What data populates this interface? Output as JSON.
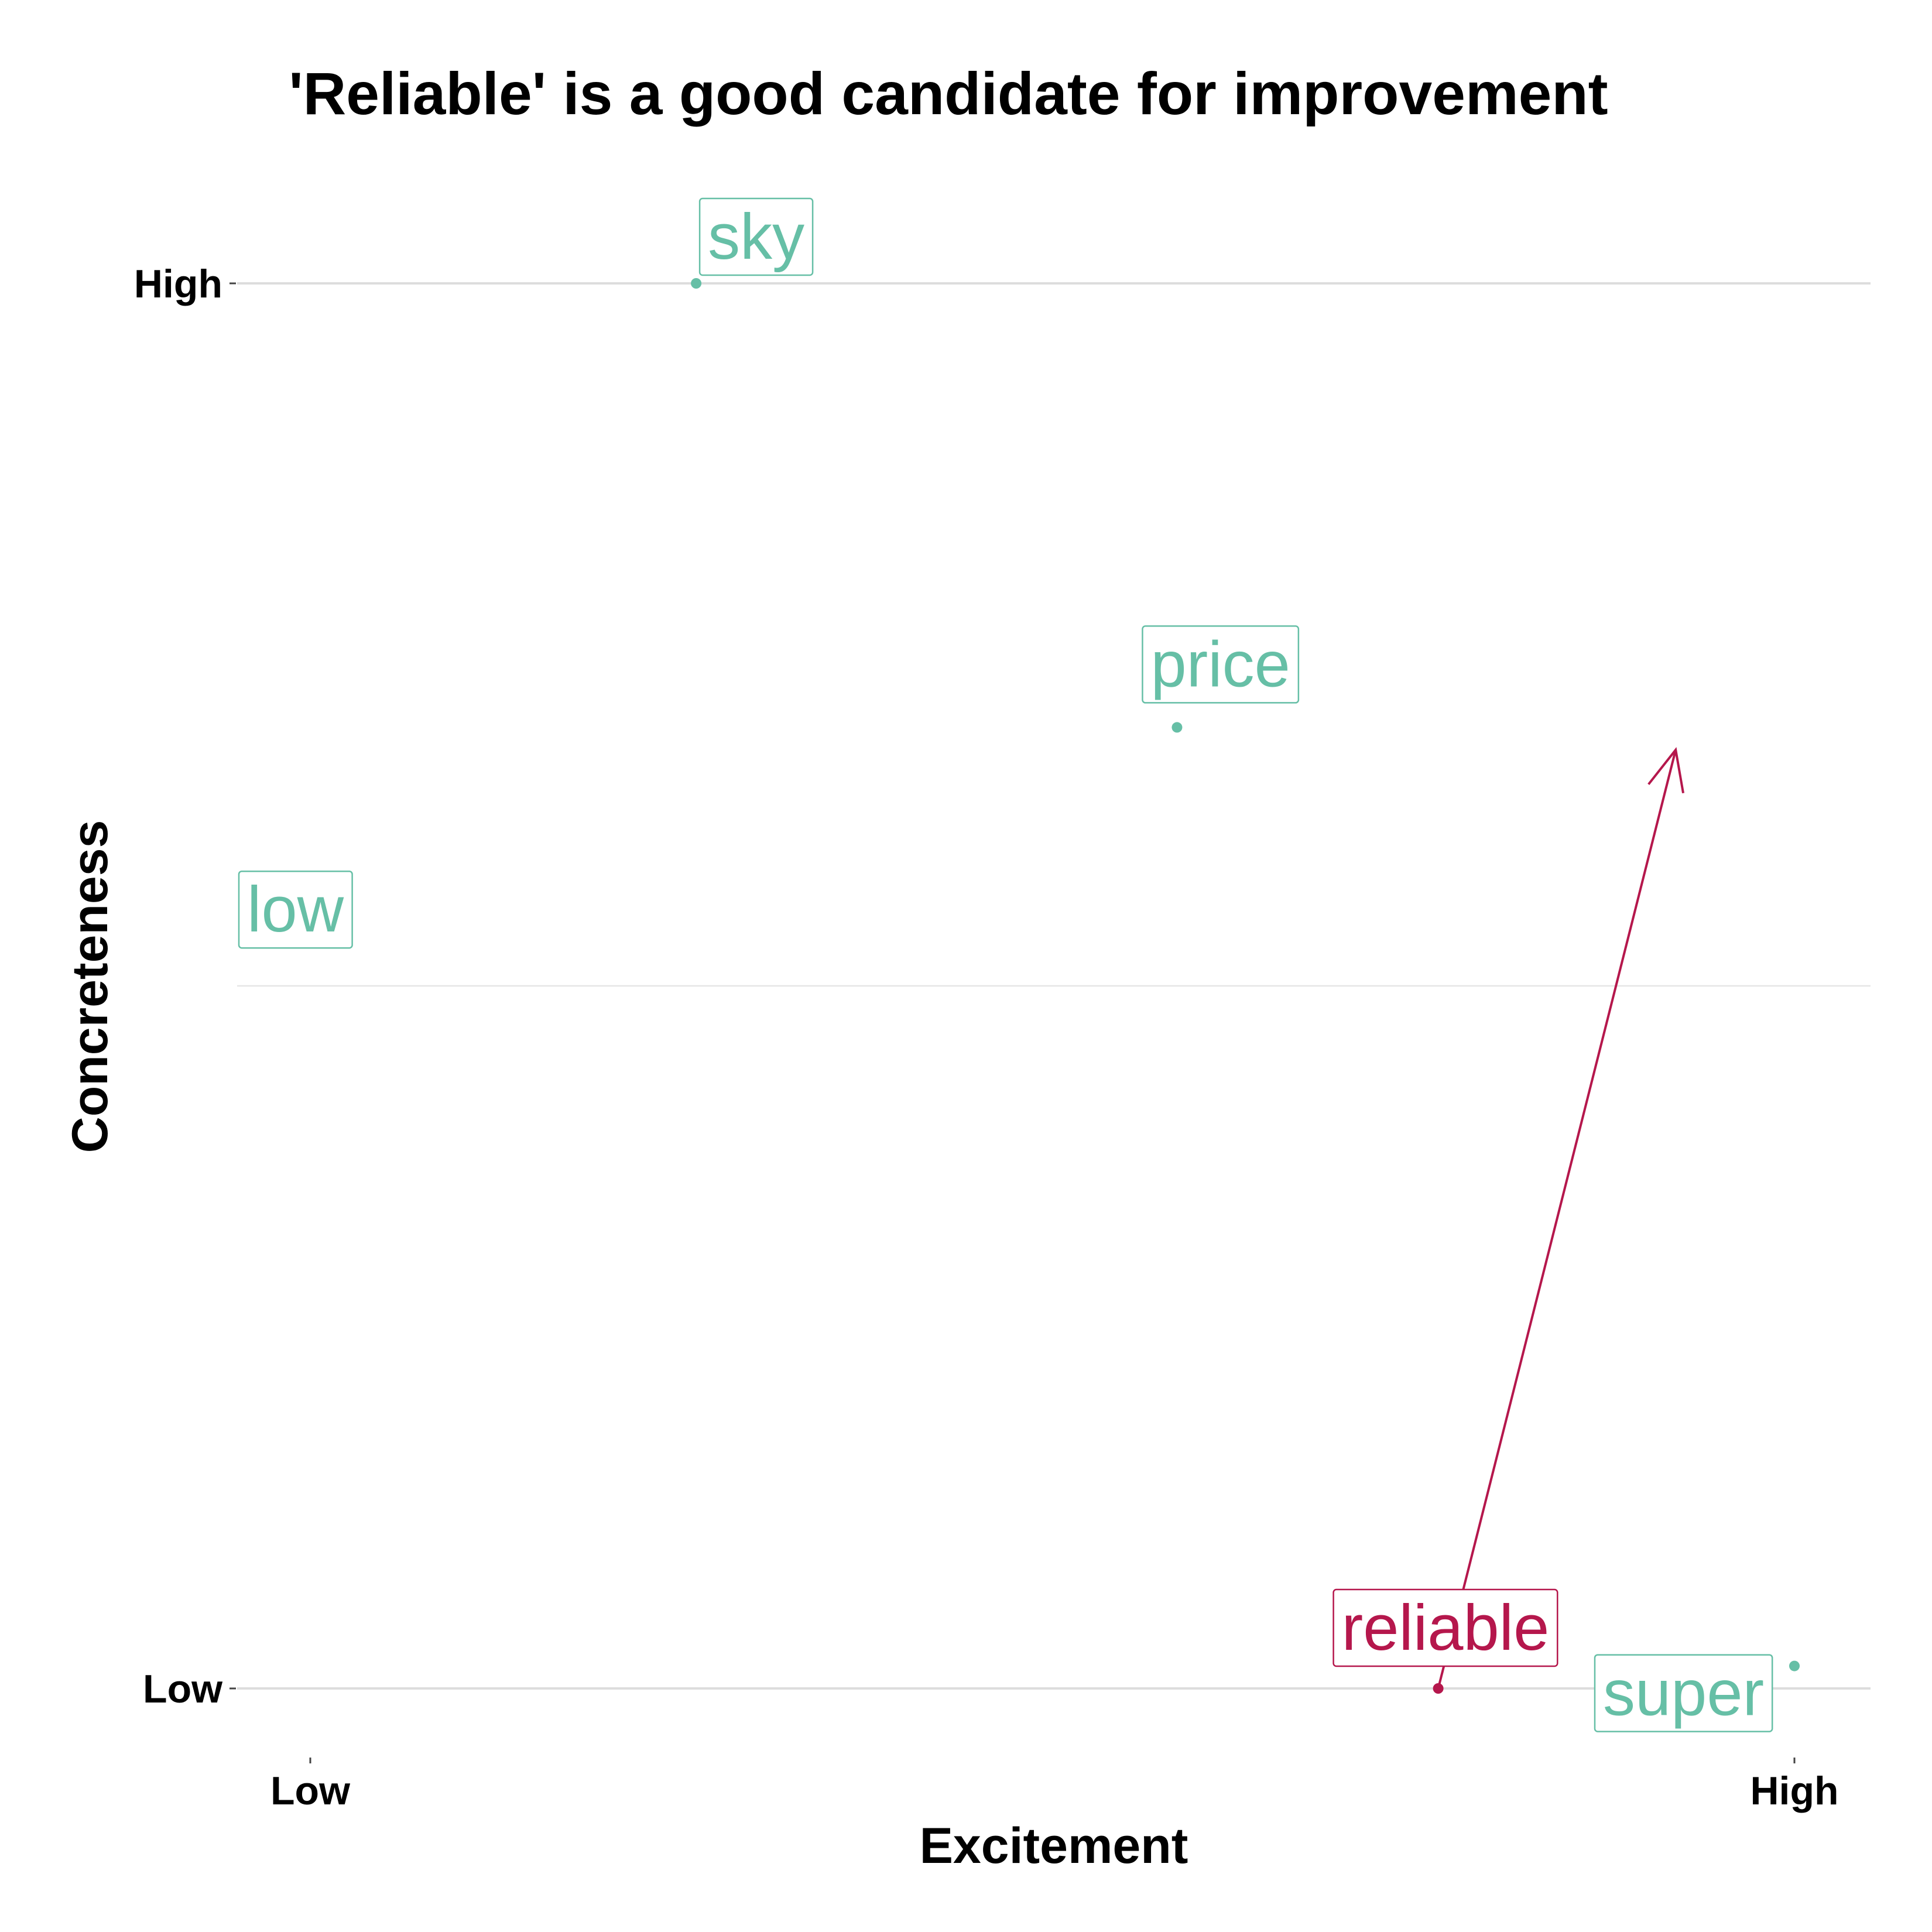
{
  "chart_data": {
    "type": "scatter",
    "title": "'Reliable' is a good candidate for improvement",
    "xlabel": "Excitement",
    "ylabel": "Concreteness",
    "xlim": [
      0,
      1
    ],
    "ylim": [
      0,
      1
    ],
    "x_ticks": [
      {
        "value": 0,
        "label": "Low"
      },
      {
        "value": 1,
        "label": "High"
      }
    ],
    "y_ticks": [
      {
        "value": 0,
        "label": "Low"
      },
      {
        "value": 1,
        "label": "High"
      }
    ],
    "grid": true,
    "legend": "none",
    "colors": {
      "base": "#66bfa6",
      "highlight": "#b5174c"
    },
    "points": [
      {
        "label": "sky",
        "x": 0.26,
        "y": 1.0,
        "highlight": false
      },
      {
        "label": "price",
        "x": 0.584,
        "y": 0.684,
        "highlight": false
      },
      {
        "label": "low",
        "x": 0.0,
        "y": 0.572,
        "highlight": false
      },
      {
        "label": "reliable",
        "x": 0.76,
        "y": 0.0,
        "highlight": true
      },
      {
        "label": "super",
        "x": 1.0,
        "y": 0.016,
        "highlight": false
      }
    ],
    "arrow": {
      "from": {
        "x": 0.76,
        "y": 0.0
      },
      "to": {
        "x": 0.92,
        "y": 0.668
      }
    }
  }
}
